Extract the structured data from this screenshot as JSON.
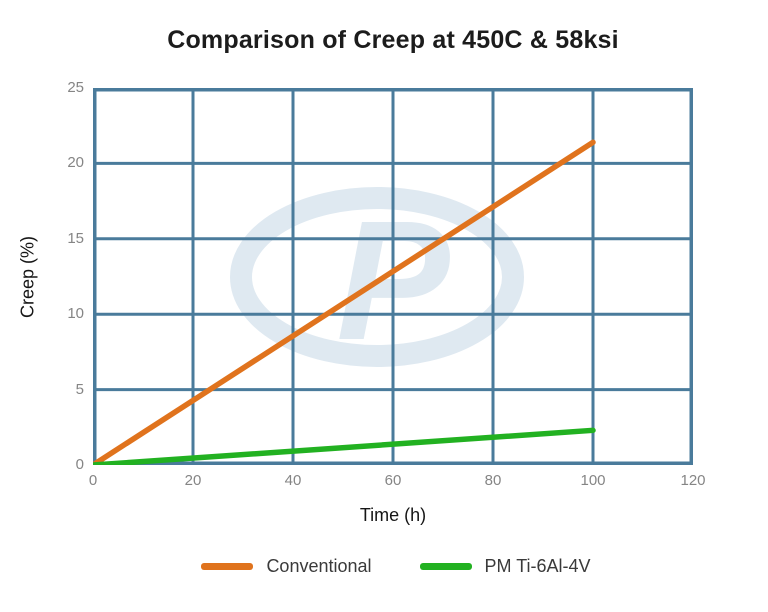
{
  "chart_data": {
    "type": "line",
    "title": "Comparison of Creep at 450C & 58ksi",
    "xlabel": "Time (h)",
    "ylabel": "Creep (%)",
    "xlim": [
      0,
      120
    ],
    "ylim": [
      0,
      25
    ],
    "xticks": [
      0,
      20,
      40,
      60,
      80,
      100,
      120
    ],
    "yticks": [
      0,
      5,
      10,
      15,
      20,
      25
    ],
    "grid": true,
    "legend_position": "bottom",
    "series": [
      {
        "name": "Conventional",
        "color": "#e0731d",
        "x": [
          0,
          100
        ],
        "y": [
          0,
          21.4
        ]
      },
      {
        "name": "PM Ti-6Al-4V",
        "color": "#22b121",
        "x": [
          0,
          100
        ],
        "y": [
          0,
          2.3
        ]
      }
    ]
  },
  "watermark": {
    "letter": "P"
  },
  "colors": {
    "grid": "#4a7b9b",
    "tick_label": "#858585",
    "title_text": "#1c1c1c",
    "axis_label_text": "#161616",
    "legend_text": "#3a3a3a",
    "watermark": "#dfe9f1",
    "background": "#ffffff"
  }
}
